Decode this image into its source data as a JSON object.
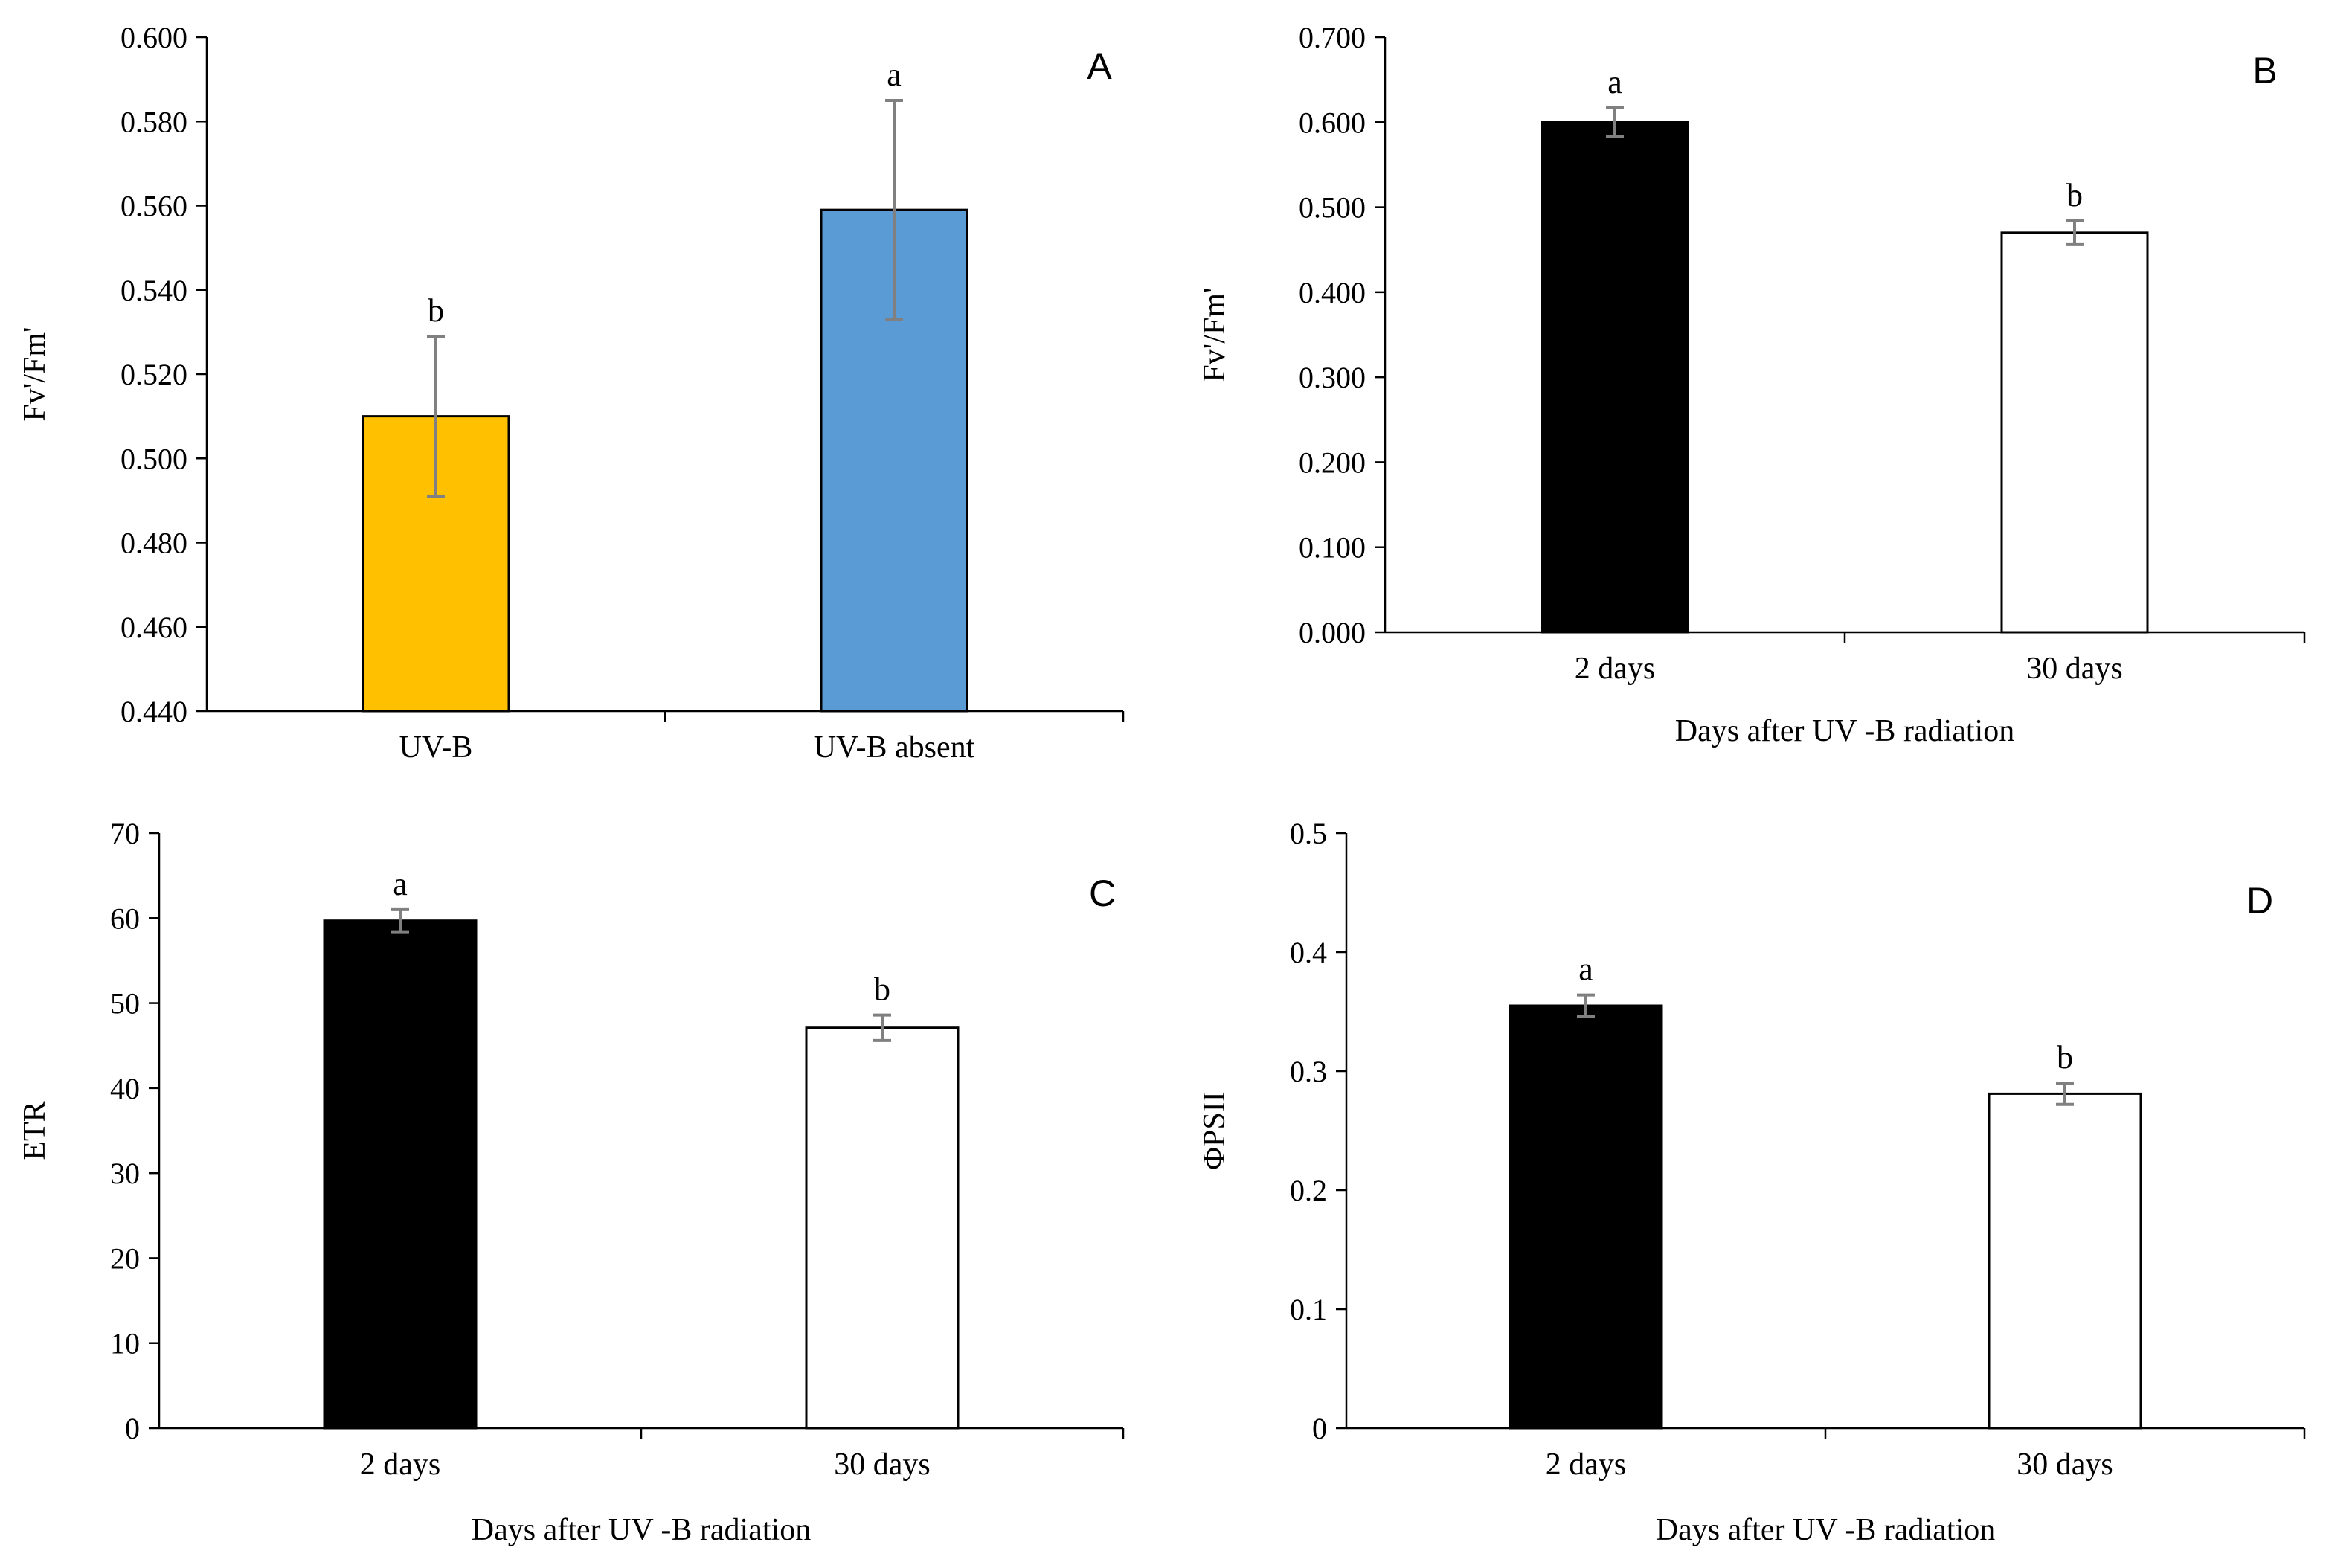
{
  "chart_data": [
    {
      "type": "bar",
      "panel": "A",
      "categories": [
        "UV-B",
        "UV-B absent"
      ],
      "values": [
        0.51,
        0.559
      ],
      "errors": [
        0.019,
        0.026
      ],
      "significance": [
        "b",
        "a"
      ],
      "bar_colors": [
        "#FFC000",
        "#5B9BD5"
      ],
      "ylabel": "Fv'/Fm'",
      "xlabel": "",
      "ylim": [
        0.44,
        0.6
      ],
      "yticks": [
        "0.440",
        "0.460",
        "0.480",
        "0.500",
        "0.520",
        "0.540",
        "0.560",
        "0.580",
        "0.600"
      ],
      "grid": false,
      "legend": "none"
    },
    {
      "type": "bar",
      "panel": "B",
      "categories": [
        "2 days",
        "30 days"
      ],
      "values": [
        0.6,
        0.47
      ],
      "errors": [
        0.017,
        0.014
      ],
      "significance": [
        "a",
        "b"
      ],
      "bar_colors": [
        "#000000",
        "#FFFFFF"
      ],
      "ylabel": "Fv'/Fm'",
      "xlabel": "Days after UV -B radiation",
      "ylim": [
        0,
        0.7
      ],
      "yticks": [
        "0.000",
        "0.100",
        "0.200",
        "0.300",
        "0.400",
        "0.500",
        "0.600",
        "0.700"
      ],
      "grid": false,
      "legend": "none"
    },
    {
      "type": "bar",
      "panel": "C",
      "categories": [
        "2 days",
        "30 days"
      ],
      "values": [
        59.7,
        47.1
      ],
      "errors": [
        1.3,
        1.5
      ],
      "significance": [
        "a",
        "b"
      ],
      "bar_colors": [
        "#000000",
        "#FFFFFF"
      ],
      "ylabel": "ETR",
      "xlabel": "Days after UV -B radiation",
      "ylim": [
        0,
        70
      ],
      "yticks": [
        "0",
        "10",
        "20",
        "30",
        "40",
        "50",
        "60",
        "70"
      ],
      "grid": false,
      "legend": "none"
    },
    {
      "type": "bar",
      "panel": "D",
      "categories": [
        "2 days",
        "30 days"
      ],
      "values": [
        0.355,
        0.281
      ],
      "errors": [
        0.009,
        0.009
      ],
      "significance": [
        "a",
        "b"
      ],
      "bar_colors": [
        "#000000",
        "#FFFFFF"
      ],
      "ylabel": "ΦPSII",
      "xlabel": "Days after UV -B radiation",
      "ylim": [
        0,
        0.5
      ],
      "yticks": [
        "0",
        "0.1",
        "0.2",
        "0.3",
        "0.4",
        "0.5"
      ],
      "grid": false,
      "legend": "none"
    }
  ]
}
